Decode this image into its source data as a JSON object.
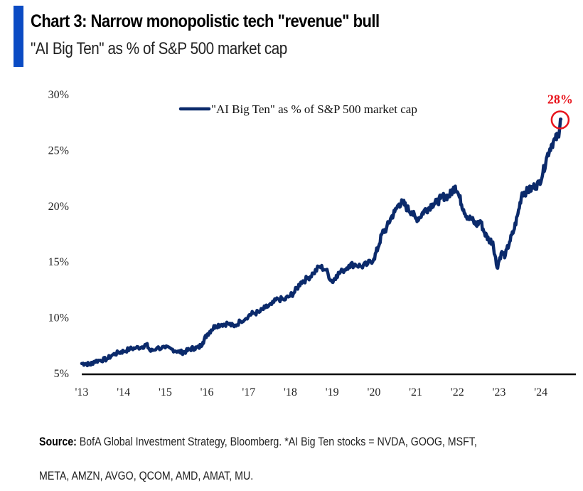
{
  "header": {
    "title": "Chart 3: Narrow monopolistic tech \"revenue\" bull",
    "subtitle": "\"AI Big Ten\" as % of S&P 500 market cap",
    "accent_color": "#0a4bc4"
  },
  "footer": {
    "source_label": "Source:",
    "source_text": " BofA Global Investment Strategy, Bloomberg. *AI Big Ten stocks = NVDA, GOOG, MSFT,",
    "source_text_line2": "META, AMZN, AVGO, QCOM, AMD, AMAT, MU."
  },
  "chart_data": {
    "type": "line",
    "title": "\"AI Big Ten\" as % of S&P 500 market cap",
    "xlabel": "",
    "ylabel": "",
    "ylim": [
      5,
      30
    ],
    "xlim": [
      2013,
      2024.85
    ],
    "y_ticks": [
      5,
      10,
      15,
      20,
      25,
      30
    ],
    "y_tick_labels": [
      "5%",
      "10%",
      "15%",
      "20%",
      "25%",
      "30%"
    ],
    "x_ticks": [
      2013,
      2014,
      2015,
      2016,
      2017,
      2018,
      2019,
      2020,
      2021,
      2022,
      2023,
      2024
    ],
    "x_tick_labels": [
      "'13",
      "'14",
      "'15",
      "'16",
      "'17",
      "'18",
      "'19",
      "'20",
      "'21",
      "'22",
      "'23",
      "'24"
    ],
    "grid": false,
    "legend": {
      "position": "top-center",
      "entries": [
        "\"AI Big Ten\" as % of S&P 500 market cap"
      ]
    },
    "series": [
      {
        "name": "\"AI Big Ten\" as % of S&P 500 market cap",
        "color": "#0b2a6b",
        "x": [
          2013.0,
          2013.1,
          2013.2,
          2013.3,
          2013.45,
          2013.6,
          2013.75,
          2013.9,
          2014.0,
          2014.15,
          2014.3,
          2014.45,
          2014.55,
          2014.65,
          2014.8,
          2015.0,
          2015.15,
          2015.3,
          2015.4,
          2015.5,
          2015.6,
          2015.7,
          2015.8,
          2015.9,
          2016.0,
          2016.1,
          2016.2,
          2016.35,
          2016.5,
          2016.65,
          2016.8,
          2017.0,
          2017.1,
          2017.25,
          2017.4,
          2017.55,
          2017.7,
          2017.85,
          2018.0,
          2018.1,
          2018.25,
          2018.4,
          2018.55,
          2018.7,
          2018.85,
          2019.0,
          2019.1,
          2019.25,
          2019.4,
          2019.55,
          2019.7,
          2019.85,
          2020.0,
          2020.1,
          2020.2,
          2020.3,
          2020.4,
          2020.5,
          2020.6,
          2020.7,
          2020.8,
          2020.9,
          2021.0,
          2021.1,
          2021.2,
          2021.3,
          2021.4,
          2021.5,
          2021.6,
          2021.7,
          2021.8,
          2021.9,
          2021.95,
          2022.05,
          2022.15,
          2022.25,
          2022.35,
          2022.45,
          2022.55,
          2022.65,
          2022.75,
          2022.85,
          2022.95,
          2023.05,
          2023.15,
          2023.25,
          2023.35,
          2023.45,
          2023.55,
          2023.65,
          2023.75,
          2023.85,
          2023.95,
          2024.05,
          2024.15,
          2024.25,
          2024.35,
          2024.42,
          2024.48
        ],
        "values": [
          5.9,
          5.9,
          5.8,
          6.1,
          6.2,
          6.3,
          6.7,
          6.9,
          7.0,
          7.2,
          7.3,
          7.4,
          7.6,
          7.0,
          7.3,
          7.3,
          7.2,
          7.0,
          6.9,
          7.0,
          7.2,
          7.3,
          7.3,
          7.8,
          8.5,
          8.9,
          9.3,
          9.4,
          9.5,
          9.2,
          9.7,
          10.2,
          10.4,
          10.5,
          10.9,
          11.2,
          11.7,
          11.6,
          12.0,
          12.3,
          13.2,
          13.5,
          14.0,
          14.6,
          14.3,
          13.2,
          13.8,
          14.2,
          14.7,
          14.8,
          14.6,
          14.8,
          15.3,
          16.3,
          17.6,
          18.0,
          18.9,
          19.5,
          20.2,
          20.3,
          19.8,
          19.5,
          18.9,
          19.0,
          19.6,
          19.8,
          20.2,
          20.3,
          20.7,
          20.9,
          20.9,
          21.5,
          21.8,
          20.8,
          19.7,
          19.0,
          18.8,
          18.3,
          18.7,
          17.6,
          17.0,
          16.8,
          14.5,
          15.8,
          15.6,
          16.8,
          17.8,
          19.3,
          21.2,
          21.3,
          21.5,
          21.8,
          22.0,
          23.0,
          24.5,
          25.5,
          26.0,
          26.4,
          27.8
        ]
      }
    ],
    "annotations": [
      {
        "text": "28%",
        "x": 2024.48,
        "y": 27.8,
        "color": "#e8141c",
        "marker": "circle"
      }
    ]
  }
}
